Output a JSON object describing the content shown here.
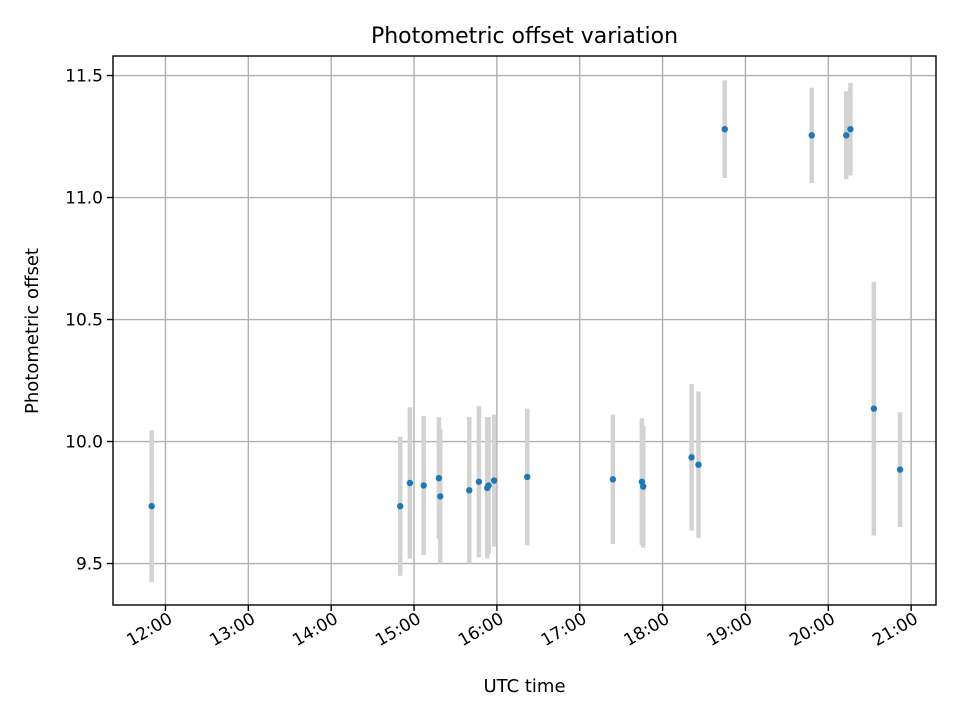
{
  "chart_data": {
    "type": "scatter",
    "title": "Photometric offset variation",
    "xlabel": "UTC time",
    "ylabel": "Photometric offset",
    "x_axis_type": "time",
    "xlim": [
      "11:22",
      "21:18"
    ],
    "ylim": [
      9.33,
      11.58
    ],
    "x_ticks": [
      "12:00",
      "13:00",
      "14:00",
      "15:00",
      "16:00",
      "17:00",
      "18:00",
      "19:00",
      "20:00",
      "21:00"
    ],
    "y_ticks": [
      "9.5",
      "10.0",
      "10.5",
      "11.0",
      "11.5"
    ],
    "grid": true,
    "marker_color": "#1f77b4",
    "errorbar_color": "#d3d3d3",
    "points": [
      {
        "x": "11:50",
        "y": 9.735,
        "err": 0.31
      },
      {
        "x": "14:50",
        "y": 9.735,
        "err": 0.285
      },
      {
        "x": "14:57",
        "y": 9.83,
        "err": 0.31
      },
      {
        "x": "15:07",
        "y": 9.82,
        "err": 0.285
      },
      {
        "x": "15:18",
        "y": 9.85,
        "err": 0.25
      },
      {
        "x": "15:19",
        "y": 9.775,
        "err": 0.275
      },
      {
        "x": "15:40",
        "y": 9.8,
        "err": 0.3
      },
      {
        "x": "15:47",
        "y": 9.835,
        "err": 0.31
      },
      {
        "x": "15:53",
        "y": 9.81,
        "err": 0.29
      },
      {
        "x": "15:54",
        "y": 9.82,
        "err": 0.28
      },
      {
        "x": "15:58",
        "y": 9.84,
        "err": 0.27
      },
      {
        "x": "16:22",
        "y": 9.855,
        "err": 0.28
      },
      {
        "x": "17:24",
        "y": 9.845,
        "err": 0.265
      },
      {
        "x": "17:45",
        "y": 9.835,
        "err": 0.26
      },
      {
        "x": "17:46",
        "y": 9.815,
        "err": 0.25
      },
      {
        "x": "18:21",
        "y": 9.935,
        "err": 0.3
      },
      {
        "x": "18:26",
        "y": 9.905,
        "err": 0.3
      },
      {
        "x": "18:45",
        "y": 11.28,
        "err": 0.2
      },
      {
        "x": "19:48",
        "y": 11.255,
        "err": 0.195
      },
      {
        "x": "20:13",
        "y": 11.255,
        "err": 0.18
      },
      {
        "x": "20:16",
        "y": 11.28,
        "err": 0.19
      },
      {
        "x": "20:33",
        "y": 10.135,
        "err": 0.52
      },
      {
        "x": "20:52",
        "y": 9.885,
        "err": 0.235
      }
    ]
  }
}
